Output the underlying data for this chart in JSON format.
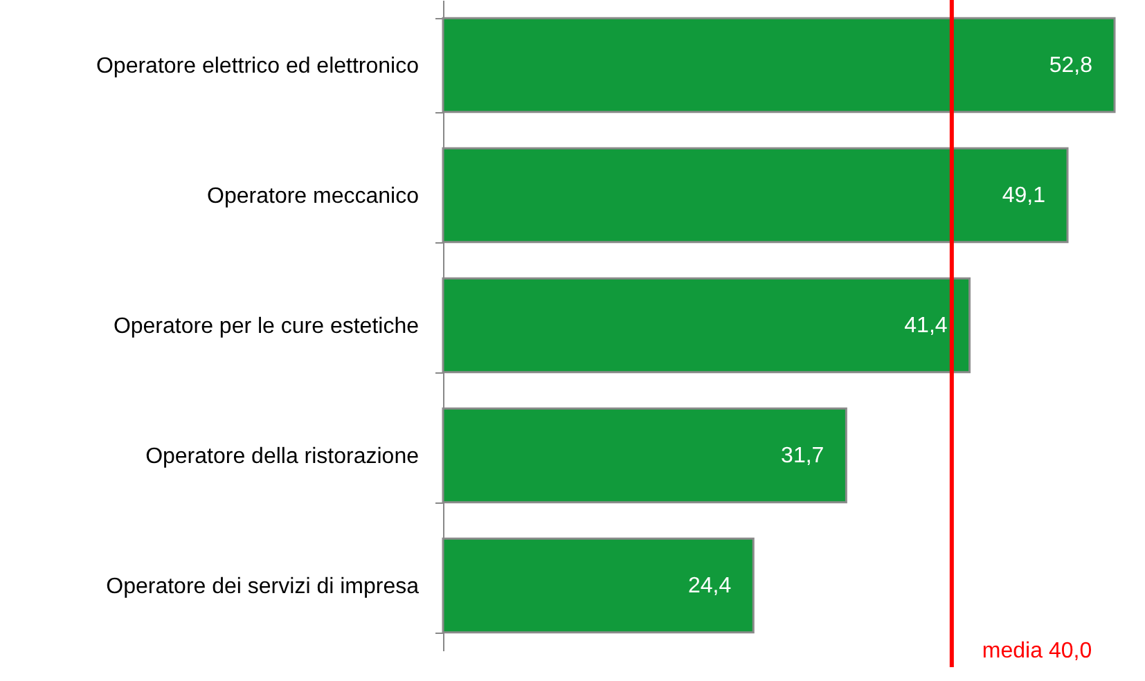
{
  "chart_data": {
    "type": "bar",
    "orientation": "horizontal",
    "categories": [
      "Operatore elettrico ed elettronico",
      "Operatore meccanico",
      "Operatore per le cure estetiche",
      "Operatore della ristorazione",
      "Operatore dei servizi di impresa"
    ],
    "values": [
      52.8,
      49.1,
      41.4,
      31.7,
      24.4
    ],
    "value_labels": [
      "52,8",
      "49,1",
      "41,4",
      "31,7",
      "24,4"
    ],
    "color": "#119a3b",
    "tick_labels": "y",
    "ref_lines": [
      {
        "axis": "x",
        "value": 40.0,
        "label": "media  40,0",
        "color": "#ff0000"
      }
    ]
  }
}
